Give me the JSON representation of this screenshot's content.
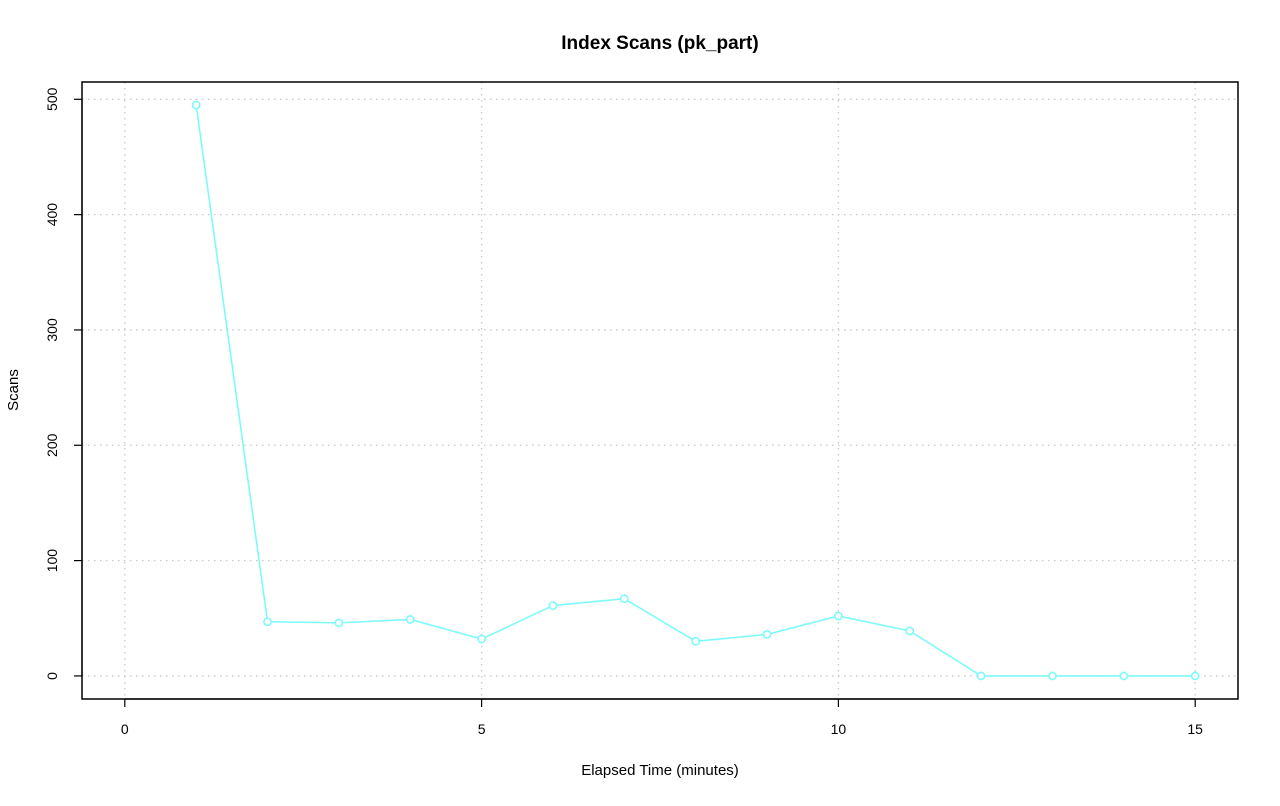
{
  "chart_data": {
    "type": "line",
    "title": "Index Scans (pk_part)",
    "xlabel": "Elapsed Time (minutes)",
    "ylabel": "Scans",
    "xlim": [
      -0.6,
      15.6
    ],
    "ylim": [
      -20,
      515
    ],
    "xticks": [
      0,
      5,
      10,
      15
    ],
    "yticks": [
      0,
      100,
      200,
      300,
      400,
      500
    ],
    "grid": true,
    "series_color": "#7ffafa",
    "x": [
      1,
      2,
      3,
      4,
      5,
      6,
      7,
      8,
      9,
      10,
      11,
      12,
      13,
      14,
      15
    ],
    "y": [
      495,
      47,
      46,
      49,
      32,
      61,
      67,
      30,
      36,
      52,
      39,
      0,
      0,
      0,
      0
    ]
  }
}
